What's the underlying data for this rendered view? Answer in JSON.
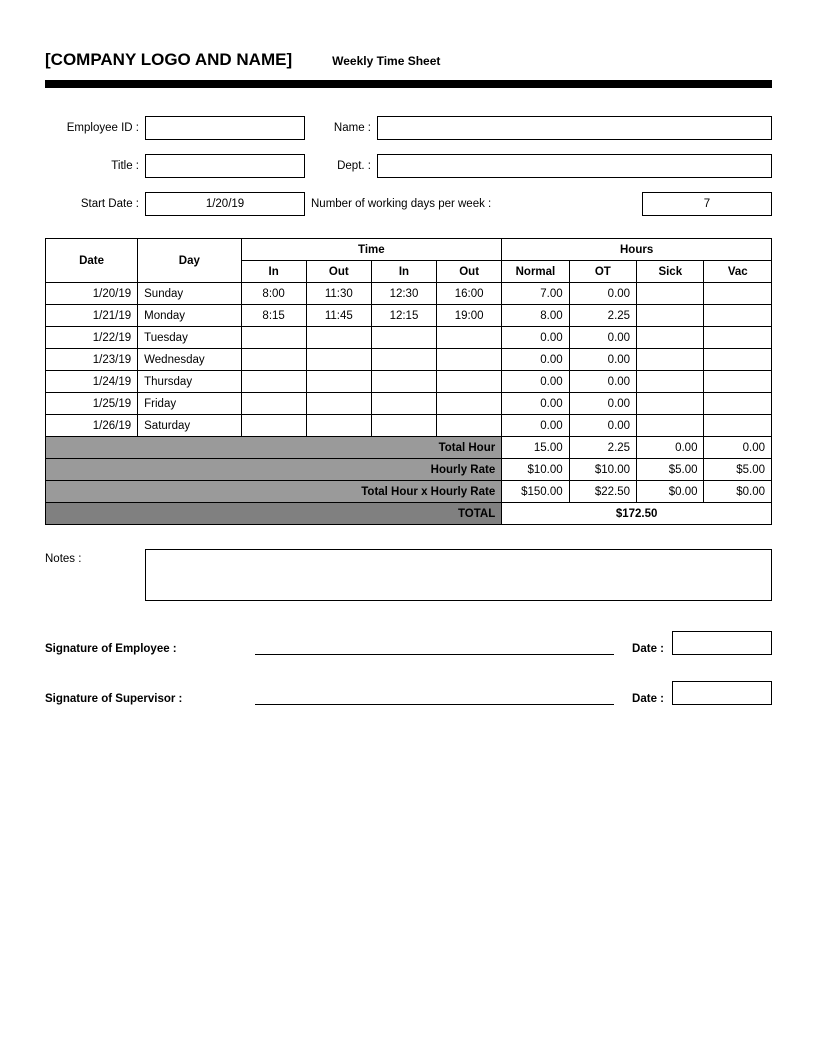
{
  "header": {
    "company": "[COMPANY LOGO AND NAME]",
    "subtitle": "Weekly Time Sheet"
  },
  "labels": {
    "employee_id": "Employee ID :",
    "name": "Name :",
    "title": "Title :",
    "dept": "Dept. :",
    "start_date": "Start Date :",
    "working_days": "Number of working days per week :",
    "notes": "Notes :",
    "sig_employee": "Signature of Employee :",
    "sig_supervisor": "Signature of Supervisor :",
    "date": "Date :"
  },
  "meta": {
    "start_date": "1/20/19",
    "working_days": "7"
  },
  "table": {
    "h_date": "Date",
    "h_day": "Day",
    "h_time": "Time",
    "h_hours": "Hours",
    "h_in": "In",
    "h_out": "Out",
    "h_normal": "Normal",
    "h_ot": "OT",
    "h_sick": "Sick",
    "h_vac": "Vac",
    "rows": [
      {
        "date": "1/20/19",
        "day": "Sunday",
        "in1": "8:00",
        "out1": "11:30",
        "in2": "12:30",
        "out2": "16:00",
        "normal": "7.00",
        "ot": "0.00",
        "sick": "",
        "vac": ""
      },
      {
        "date": "1/21/19",
        "day": "Monday",
        "in1": "8:15",
        "out1": "11:45",
        "in2": "12:15",
        "out2": "19:00",
        "normal": "8.00",
        "ot": "2.25",
        "sick": "",
        "vac": ""
      },
      {
        "date": "1/22/19",
        "day": "Tuesday",
        "in1": "",
        "out1": "",
        "in2": "",
        "out2": "",
        "normal": "0.00",
        "ot": "0.00",
        "sick": "",
        "vac": ""
      },
      {
        "date": "1/23/19",
        "day": "Wednesday",
        "in1": "",
        "out1": "",
        "in2": "",
        "out2": "",
        "normal": "0.00",
        "ot": "0.00",
        "sick": "",
        "vac": ""
      },
      {
        "date": "1/24/19",
        "day": "Thursday",
        "in1": "",
        "out1": "",
        "in2": "",
        "out2": "",
        "normal": "0.00",
        "ot": "0.00",
        "sick": "",
        "vac": ""
      },
      {
        "date": "1/25/19",
        "day": "Friday",
        "in1": "",
        "out1": "",
        "in2": "",
        "out2": "",
        "normal": "0.00",
        "ot": "0.00",
        "sick": "",
        "vac": ""
      },
      {
        "date": "1/26/19",
        "day": "Saturday",
        "in1": "",
        "out1": "",
        "in2": "",
        "out2": "",
        "normal": "0.00",
        "ot": "0.00",
        "sick": "",
        "vac": ""
      }
    ],
    "summary": {
      "total_hour_label": "Total Hour",
      "hourly_rate_label": "Hourly Rate",
      "thxhr_label": "Total Hour x Hourly Rate",
      "total_label": "TOTAL",
      "total_hour": {
        "normal": "15.00",
        "ot": "2.25",
        "sick": "0.00",
        "vac": "0.00"
      },
      "hourly_rate": {
        "normal": "$10.00",
        "ot": "$10.00",
        "sick": "$5.00",
        "vac": "$5.00"
      },
      "thxhr": {
        "normal": "$150.00",
        "ot": "$22.50",
        "sick": "$0.00",
        "vac": "$0.00"
      },
      "grand_total": "$172.50"
    }
  },
  "style": {
    "bar_color": "#000000",
    "summary_bg": "#9a9a9a",
    "total_bg": "#808080"
  }
}
